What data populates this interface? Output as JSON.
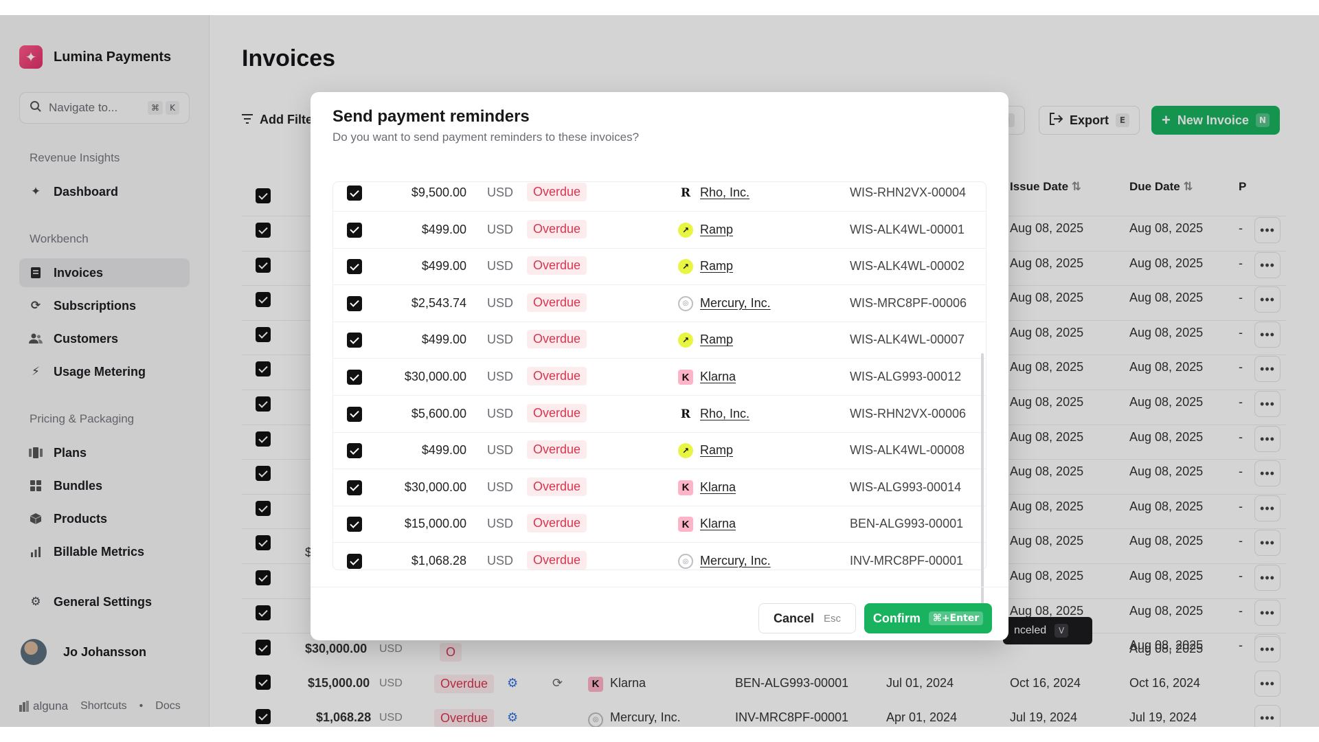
{
  "sidebar": {
    "brand": "Lumina Payments",
    "search_placeholder": "Navigate to...",
    "search_keys": [
      "⌘",
      "K"
    ],
    "sections": {
      "revenue": "Revenue Insights",
      "workbench": "Workbench",
      "pricing": "Pricing & Packaging"
    },
    "items": {
      "dashboard": "Dashboard",
      "invoices": "Invoices",
      "subscriptions": "Subscriptions",
      "customers": "Customers",
      "usage": "Usage Metering",
      "plans": "Plans",
      "bundles": "Bundles",
      "products": "Products",
      "metrics": "Billable Metrics",
      "settings": "General Settings"
    },
    "user": "Jo Johansson",
    "footer": {
      "logo": "alguna",
      "shortcuts": "Shortcuts",
      "separator": "•",
      "docs": "Docs"
    }
  },
  "main": {
    "title": "Invoices",
    "add_filter": "Add Filte",
    "partial_key": "I",
    "export": {
      "label": "Export",
      "key": "E"
    },
    "new_invoice": {
      "label": "New Invoice",
      "key": "N"
    },
    "headers": {
      "issue_date": "Issue Date",
      "due_date": "Due Date",
      "partial": "P"
    },
    "bg_date": "Aug 08, 2025",
    "dash": "-",
    "partial_amount": "$",
    "partial_status": "O",
    "bg_rows_visible": [
      {
        "amount": "$30,000.00",
        "currency": "USD",
        "status": "O",
        "due": "Aug 08, 2025"
      },
      {
        "amount": "$15,000.00",
        "currency": "USD",
        "status": "Overdue",
        "customer": "Klarna",
        "number": "BEN-ALG993-00001",
        "created": "Jul 01, 2024",
        "issue": "Oct 16, 2024",
        "due": "Oct 16, 2024"
      },
      {
        "amount": "$1,068.28",
        "currency": "USD",
        "status": "Overdue",
        "customer": "Mercury, Inc.",
        "number": "INV-MRC8PF-00001",
        "created": "Apr 01, 2024",
        "issue": "Jul 19, 2024",
        "due": "Jul 19, 2024"
      }
    ]
  },
  "toast": {
    "text": "nceled",
    "key": "V"
  },
  "modal": {
    "title": "Send payment reminders",
    "subtitle": "Do you want to send payment reminders to these invoices?",
    "rows": [
      {
        "amount": "$9,500.00",
        "currency": "USD",
        "status": "Overdue",
        "logo": "rho",
        "customer": "Rho, Inc.",
        "number": "WIS-RHN2VX-00004"
      },
      {
        "amount": "$499.00",
        "currency": "USD",
        "status": "Overdue",
        "logo": "ramp",
        "customer": "Ramp",
        "number": "WIS-ALK4WL-00001"
      },
      {
        "amount": "$499.00",
        "currency": "USD",
        "status": "Overdue",
        "logo": "ramp",
        "customer": "Ramp",
        "number": "WIS-ALK4WL-00002"
      },
      {
        "amount": "$2,543.74",
        "currency": "USD",
        "status": "Overdue",
        "logo": "mercury",
        "customer": "Mercury, Inc.",
        "number": "WIS-MRC8PF-00006"
      },
      {
        "amount": "$499.00",
        "currency": "USD",
        "status": "Overdue",
        "logo": "ramp",
        "customer": "Ramp",
        "number": "WIS-ALK4WL-00007"
      },
      {
        "amount": "$30,000.00",
        "currency": "USD",
        "status": "Overdue",
        "logo": "klarna",
        "customer": "Klarna",
        "number": "WIS-ALG993-00012"
      },
      {
        "amount": "$5,600.00",
        "currency": "USD",
        "status": "Overdue",
        "logo": "rho",
        "customer": "Rho, Inc.",
        "number": "WIS-RHN2VX-00006"
      },
      {
        "amount": "$499.00",
        "currency": "USD",
        "status": "Overdue",
        "logo": "ramp",
        "customer": "Ramp",
        "number": "WIS-ALK4WL-00008"
      },
      {
        "amount": "$30,000.00",
        "currency": "USD",
        "status": "Overdue",
        "logo": "klarna",
        "customer": "Klarna",
        "number": "WIS-ALG993-00014"
      },
      {
        "amount": "$15,000.00",
        "currency": "USD",
        "status": "Overdue",
        "logo": "klarna",
        "customer": "Klarna",
        "number": "BEN-ALG993-00001"
      },
      {
        "amount": "$1,068.28",
        "currency": "USD",
        "status": "Overdue",
        "logo": "mercury",
        "customer": "Mercury, Inc.",
        "number": "INV-MRC8PF-00001"
      }
    ],
    "cancel": {
      "label": "Cancel",
      "key": "Esc"
    },
    "confirm": {
      "label": "Confirm",
      "key": "⌘+Enter"
    }
  }
}
